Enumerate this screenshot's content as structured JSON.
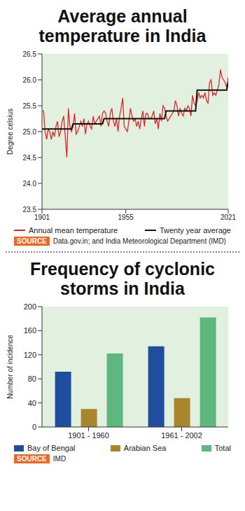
{
  "chart_data": [
    {
      "type": "line",
      "title": "Average annual temperature in India",
      "y_label": "Degree celsius",
      "source_label": "SOURCE",
      "source": "Data.gov.in; and India Meteorological Department (IMD)",
      "legend": "bottom",
      "grid": false,
      "x": [
        1901,
        1902,
        1903,
        1904,
        1905,
        1906,
        1907,
        1908,
        1909,
        1910,
        1911,
        1912,
        1913,
        1914,
        1915,
        1916,
        1917,
        1918,
        1919,
        1920,
        1921,
        1922,
        1923,
        1924,
        1925,
        1926,
        1927,
        1928,
        1929,
        1930,
        1931,
        1932,
        1933,
        1934,
        1935,
        1936,
        1937,
        1938,
        1939,
        1940,
        1941,
        1942,
        1943,
        1944,
        1945,
        1946,
        1947,
        1948,
        1949,
        1950,
        1951,
        1952,
        1953,
        1954,
        1955,
        1956,
        1957,
        1958,
        1959,
        1960,
        1961,
        1962,
        1963,
        1964,
        1965,
        1966,
        1967,
        1968,
        1969,
        1970,
        1971,
        1972,
        1973,
        1974,
        1975,
        1976,
        1977,
        1978,
        1979,
        1980,
        1981,
        1982,
        1983,
        1984,
        1985,
        1986,
        1987,
        1988,
        1989,
        1990,
        1991,
        1992,
        1993,
        1994,
        1995,
        1996,
        1997,
        1998,
        1999,
        2000,
        2001,
        2002,
        2003,
        2004,
        2005,
        2006,
        2007,
        2008,
        2009,
        2010,
        2011,
        2012,
        2013,
        2014,
        2015,
        2016,
        2017,
        2018,
        2019,
        2020,
        2021
      ],
      "xlim": [
        1901,
        2021
      ],
      "xticks": [
        1901,
        1955,
        2021
      ],
      "ylim": [
        23.5,
        26.5
      ],
      "yticks": [
        23.5,
        {
          "value": 24,
          "label": "24.0"
        },
        24.5,
        {
          "value": 25,
          "label": "25.0"
        },
        25.5,
        {
          "value": 26,
          "label": "26.0"
        },
        26.5
      ],
      "series": [
        {
          "name": "Annual mean temperature",
          "color": "#e0252a",
          "values": [
            25.4,
            25.4,
            25.0,
            24.85,
            25.05,
            25.0,
            24.85,
            25.0,
            24.9,
            25.1,
            25.2,
            24.9,
            25.0,
            25.2,
            25.3,
            24.9,
            24.5,
            25.45,
            25.1,
            25.0,
            25.1,
            25.35,
            24.95,
            25.0,
            25.1,
            25.2,
            25.1,
            25.25,
            24.95,
            25.15,
            25.2,
            25.1,
            25.05,
            25.3,
            25.15,
            25.2,
            25.25,
            25.3,
            25.1,
            25.35,
            25.4,
            25.35,
            25.2,
            25.1,
            25.35,
            25.45,
            25.2,
            25.1,
            25.25,
            25.0,
            25.3,
            25.45,
            25.65,
            25.1,
            25.05,
            25.0,
            25.2,
            25.45,
            25.3,
            25.2,
            25.25,
            25.1,
            25.2,
            25.05,
            25.25,
            25.4,
            25.1,
            25.35,
            25.35,
            25.25,
            25.25,
            25.3,
            25.4,
            25.15,
            25.25,
            25.05,
            25.35,
            25.2,
            25.5,
            25.45,
            25.3,
            25.2,
            25.25,
            25.3,
            25.35,
            25.4,
            25.6,
            25.5,
            25.3,
            25.45,
            25.35,
            25.3,
            25.45,
            25.4,
            25.5,
            25.45,
            25.3,
            25.7,
            25.55,
            25.5,
            25.6,
            25.75,
            25.65,
            25.7,
            25.65,
            25.75,
            25.6,
            25.55,
            25.95,
            26.0,
            25.7,
            25.75,
            25.7,
            25.8,
            25.9,
            26.2,
            26.05,
            26.0,
            25.95,
            25.85,
            26.05
          ]
        },
        {
          "name": "Twenty year average",
          "color": "#111111",
          "values": [
            25.05,
            25.05,
            25.05,
            25.05,
            25.05,
            25.05,
            25.05,
            25.05,
            25.05,
            25.05,
            25.05,
            25.05,
            25.05,
            25.05,
            25.05,
            25.05,
            25.05,
            25.05,
            25.05,
            25.05,
            25.15,
            25.15,
            25.15,
            25.15,
            25.15,
            25.15,
            25.15,
            25.15,
            25.15,
            25.15,
            25.15,
            25.15,
            25.15,
            25.15,
            25.15,
            25.15,
            25.15,
            25.15,
            25.15,
            25.15,
            25.25,
            25.25,
            25.25,
            25.25,
            25.25,
            25.25,
            25.25,
            25.25,
            25.25,
            25.25,
            25.25,
            25.25,
            25.25,
            25.25,
            25.25,
            25.25,
            25.25,
            25.25,
            25.25,
            25.25,
            25.25,
            25.25,
            25.25,
            25.25,
            25.25,
            25.25,
            25.25,
            25.25,
            25.25,
            25.25,
            25.25,
            25.25,
            25.25,
            25.25,
            25.25,
            25.25,
            25.25,
            25.25,
            25.25,
            25.25,
            25.4,
            25.4,
            25.4,
            25.4,
            25.4,
            25.4,
            25.4,
            25.4,
            25.4,
            25.4,
            25.4,
            25.4,
            25.4,
            25.4,
            25.4,
            25.4,
            25.4,
            25.4,
            25.4,
            25.4,
            25.8,
            25.8,
            25.8,
            25.8,
            25.8,
            25.8,
            25.8,
            25.8,
            25.8,
            25.8,
            25.8,
            25.8,
            25.8,
            25.8,
            25.8,
            25.8,
            25.8,
            25.8,
            25.8,
            25.8,
            25.95
          ]
        }
      ]
    },
    {
      "type": "bar",
      "title": "Frequency of cyclonic storms in India",
      "y_label": "Number of incidence",
      "source_label": "SOURCE",
      "source": "IMD",
      "legend": "bottom",
      "grid": false,
      "categories": [
        "1901 - 1960",
        "1961 - 2002"
      ],
      "ylim": [
        0,
        200
      ],
      "yticks": [
        0,
        40,
        80,
        120,
        160,
        200
      ],
      "series": [
        {
          "name": "Bay of Bengal",
          "color": "#1f4e9e",
          "values": [
            92,
            134
          ]
        },
        {
          "name": "Arabian Sea",
          "color": "#a8862c",
          "values": [
            30,
            48
          ]
        },
        {
          "name": "Total",
          "color": "#5db77f",
          "values": [
            122,
            182
          ]
        }
      ]
    }
  ]
}
